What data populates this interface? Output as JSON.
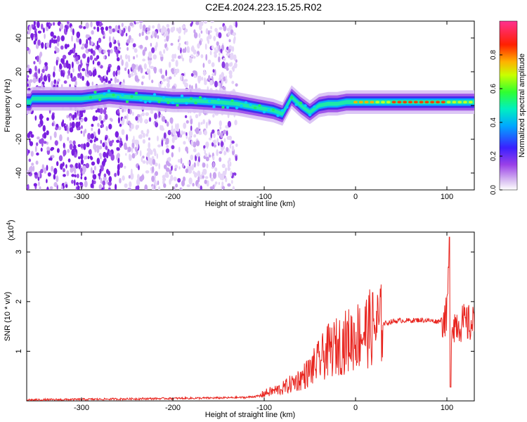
{
  "title": "C2E4.2024.223.15.25.R02",
  "chart_data": [
    {
      "type": "heatmap",
      "xlabel": "Height of straight line (km)",
      "ylabel": "Frequency (Hz)",
      "xlim": [
        -360,
        130
      ],
      "ylim": [
        -50,
        50
      ],
      "xticks": [
        -300,
        -200,
        -100,
        0,
        100
      ],
      "xtick_labels": [
        "-300",
        "-200",
        "-100",
        "0",
        "100"
      ],
      "yticks": [
        -40,
        -20,
        0,
        20,
        40
      ],
      "ytick_labels": [
        "-40",
        "-20",
        "0",
        "20",
        "40"
      ],
      "colorbar": {
        "label": "Normalized spectral amplitude",
        "range": [
          0,
          1
        ],
        "ticks": [
          0,
          0.2,
          0.4,
          0.6,
          0.8
        ],
        "tick_labels": [
          "0.0",
          "0.2",
          "0.4",
          "0.6",
          "0.8"
        ],
        "colors": [
          "#ffffff",
          "#d8b8f0",
          "#8a2be2",
          "#2020ff",
          "#00c8ff",
          "#00ff90",
          "#40ff00",
          "#e0ff00",
          "#ffa000",
          "#ff2000",
          "#ff40a0"
        ]
      },
      "ridge": {
        "x": [
          -355,
          -330,
          -300,
          -270,
          -250,
          -220,
          -200,
          -180,
          -150,
          -130,
          -110,
          -90,
          -80,
          -70,
          -60,
          -50,
          -40,
          -30,
          -20,
          -10,
          0,
          20,
          40,
          60,
          80,
          100,
          130
        ],
        "frequency": [
          4,
          4,
          4,
          6,
          5,
          4,
          3,
          3,
          2,
          1,
          -1,
          -3,
          -5,
          5,
          0,
          -4,
          0,
          1,
          1,
          2,
          2,
          2,
          2,
          2,
          2,
          2,
          2
        ]
      }
    },
    {
      "type": "line",
      "xlabel": "Height of straight line (km)",
      "ylabel": "SNR (10 * v/v)",
      "scale_label": "(x10",
      "scale_exp": "4",
      "xlim": [
        -360,
        130
      ],
      "ylim": [
        0,
        3.4
      ],
      "xticks": [
        -300,
        -200,
        -100,
        0,
        100
      ],
      "xtick_labels": [
        "-300",
        "-200",
        "-100",
        "0",
        "100"
      ],
      "yticks": [
        1,
        2,
        3
      ],
      "ytick_labels": [
        "1",
        "2",
        "3"
      ],
      "color": "#e8241e",
      "series": [
        {
          "x": [
            -360,
            -300,
            -250,
            -200,
            -150,
            -120,
            -105,
            -100,
            -90,
            -80,
            -70,
            -60,
            -50,
            -40,
            -30,
            -20,
            -10,
            0,
            10,
            20,
            30,
            40,
            50,
            60,
            70,
            80,
            90,
            95,
            100,
            103,
            105,
            110,
            120,
            130
          ],
          "y": [
            0.02,
            0.03,
            0.04,
            0.05,
            0.06,
            0.07,
            0.1,
            0.15,
            0.2,
            0.25,
            0.35,
            0.45,
            0.6,
            0.8,
            1.0,
            1.1,
            1.2,
            1.3,
            1.4,
            1.5,
            1.55,
            1.6,
            1.62,
            1.62,
            1.63,
            1.62,
            1.6,
            1.65,
            1.7,
            3.3,
            1.55,
            1.57,
            1.56,
            1.53
          ]
        }
      ]
    }
  ]
}
